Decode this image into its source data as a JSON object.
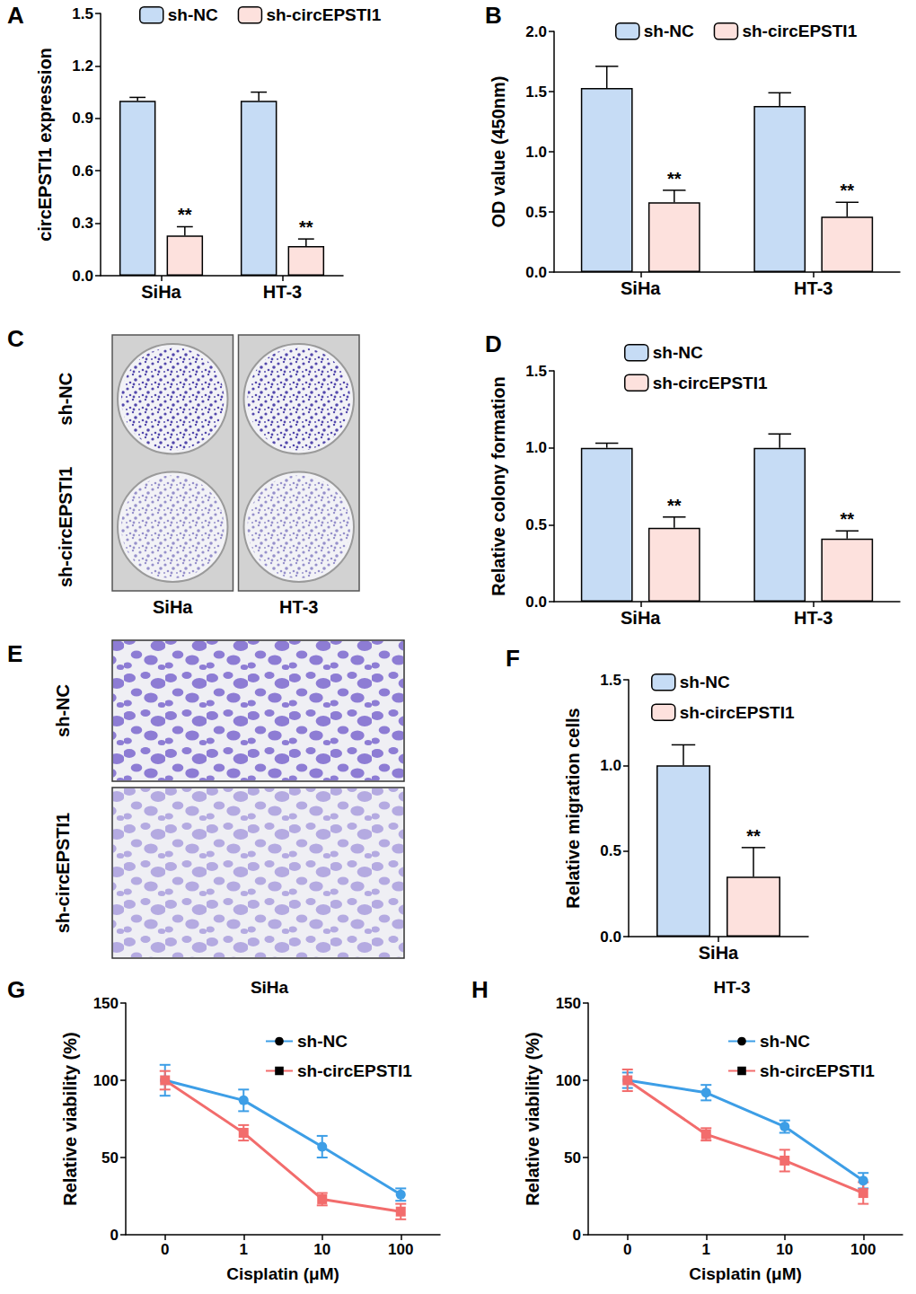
{
  "chart_data": [
    {
      "panel": "A",
      "type": "bar",
      "categories": [
        "SiHa",
        "HT-3"
      ],
      "y_label": "circEPSTI1 expression",
      "ylim": [
        0,
        1.5
      ],
      "yticks": [
        {
          "value": 0,
          "label": "0.0"
        },
        {
          "value": 0.3,
          "label": "0.3"
        },
        {
          "value": 0.6,
          "label": "0.6"
        },
        {
          "value": 0.9,
          "label": "0.9"
        },
        {
          "value": 1.2,
          "label": "1.2"
        },
        {
          "value": 1.5,
          "label": "1.5"
        }
      ],
      "grid": false,
      "series": [
        {
          "name": "sh-NC",
          "color": "#c6dcf5",
          "values": [
            1.0,
            1.0
          ],
          "errors": [
            0.02,
            0.05
          ]
        },
        {
          "name": "sh-circEPSTI1",
          "color": "#fde1dd",
          "values": [
            0.23,
            0.17
          ],
          "errors": [
            0.05,
            0.04
          ],
          "annotations": [
            "**",
            "**"
          ]
        }
      ]
    },
    {
      "panel": "B",
      "type": "bar",
      "categories": [
        "SiHa",
        "HT-3"
      ],
      "y_label": "OD value (450nm)",
      "ylim": [
        0,
        2.0
      ],
      "yticks": [
        {
          "value": 0,
          "label": "0.0"
        },
        {
          "value": 0.5,
          "label": "0.5"
        },
        {
          "value": 1.0,
          "label": "1.0"
        },
        {
          "value": 1.5,
          "label": "1.5"
        },
        {
          "value": 2.0,
          "label": "2.0"
        }
      ],
      "grid": false,
      "series": [
        {
          "name": "sh-NC",
          "color": "#c6dcf5",
          "values": [
            1.53,
            1.38
          ],
          "errors": [
            0.18,
            0.11
          ]
        },
        {
          "name": "sh-circEPSTI1",
          "color": "#fde1dd",
          "values": [
            0.58,
            0.46
          ],
          "errors": [
            0.1,
            0.12
          ],
          "annotations": [
            "**",
            "**"
          ]
        }
      ]
    },
    {
      "panel": "C",
      "type": "image",
      "row_labels": [
        "sh-NC",
        "sh-circEPSTI1"
      ],
      "column_labels": [
        "SiHa",
        "HT-3"
      ]
    },
    {
      "panel": "D",
      "type": "bar",
      "categories": [
        "SiHa",
        "HT-3"
      ],
      "y_label": "Relative colony formation",
      "ylim": [
        0,
        1.5
      ],
      "yticks": [
        {
          "value": 0,
          "label": "0.0"
        },
        {
          "value": 0.5,
          "label": "0.5"
        },
        {
          "value": 1.0,
          "label": "1.0"
        },
        {
          "value": 1.5,
          "label": "1.5"
        }
      ],
      "grid": false,
      "series": [
        {
          "name": "sh-NC",
          "color": "#c6dcf5",
          "values": [
            1.0,
            1.0
          ],
          "errors": [
            0.03,
            0.09
          ]
        },
        {
          "name": "sh-circEPSTI1",
          "color": "#fde1dd",
          "values": [
            0.48,
            0.41
          ],
          "errors": [
            0.07,
            0.05
          ],
          "annotations": [
            "**",
            "**"
          ]
        }
      ]
    },
    {
      "panel": "E",
      "type": "image",
      "row_labels": [
        "sh-NC",
        "sh-circEPSTI1"
      ]
    },
    {
      "panel": "F",
      "type": "bar",
      "categories": [
        "SiHa"
      ],
      "y_label": "Relative migration cells",
      "ylim": [
        0,
        1.5
      ],
      "yticks": [
        {
          "value": 0,
          "label": "0.0"
        },
        {
          "value": 0.5,
          "label": "0.5"
        },
        {
          "value": 1.0,
          "label": "1.0"
        },
        {
          "value": 1.5,
          "label": "1.5"
        }
      ],
      "grid": false,
      "series": [
        {
          "name": "sh-NC",
          "color": "#c6dcf5",
          "values": [
            1.0
          ],
          "errors": [
            0.12
          ]
        },
        {
          "name": "sh-circEPSTI1",
          "color": "#fde1dd",
          "values": [
            0.35
          ],
          "errors": [
            0.17
          ],
          "annotations": [
            "**"
          ]
        }
      ]
    },
    {
      "panel": "G",
      "type": "line",
      "title": "SiHa",
      "categories": [
        "0",
        "1",
        "10",
        "100"
      ],
      "x_label": "Cisplatin (μM)",
      "y_label": "Relative viability (%)",
      "ylim": [
        0,
        150
      ],
      "yticks": [
        0,
        50,
        100,
        150
      ],
      "grid": false,
      "series": [
        {
          "name": "sh-NC",
          "color": "#3d9ee6",
          "marker": "circle",
          "values": [
            100,
            87,
            57,
            26
          ],
          "errors": [
            10,
            7,
            7,
            4
          ]
        },
        {
          "name": "sh-circEPSTI1",
          "color": "#f26c6c",
          "marker": "square",
          "values": [
            100,
            66,
            23,
            15
          ],
          "errors": [
            6,
            5,
            4,
            5
          ]
        }
      ]
    },
    {
      "panel": "H",
      "type": "line",
      "title": "HT-3",
      "categories": [
        "0",
        "1",
        "10",
        "100"
      ],
      "x_label": "Cisplatin (μM)",
      "y_label": "Relative viability (%)",
      "ylim": [
        0,
        150
      ],
      "yticks": [
        0,
        50,
        100,
        150
      ],
      "grid": false,
      "series": [
        {
          "name": "sh-NC",
          "color": "#3d9ee6",
          "marker": "circle",
          "values": [
            100,
            92,
            70,
            35
          ],
          "errors": [
            5,
            5,
            4,
            5
          ]
        },
        {
          "name": "sh-circEPSTI1",
          "color": "#f26c6c",
          "marker": "square",
          "values": [
            100,
            65,
            48,
            27
          ],
          "errors": [
            7,
            4,
            7,
            7
          ]
        }
      ]
    }
  ]
}
